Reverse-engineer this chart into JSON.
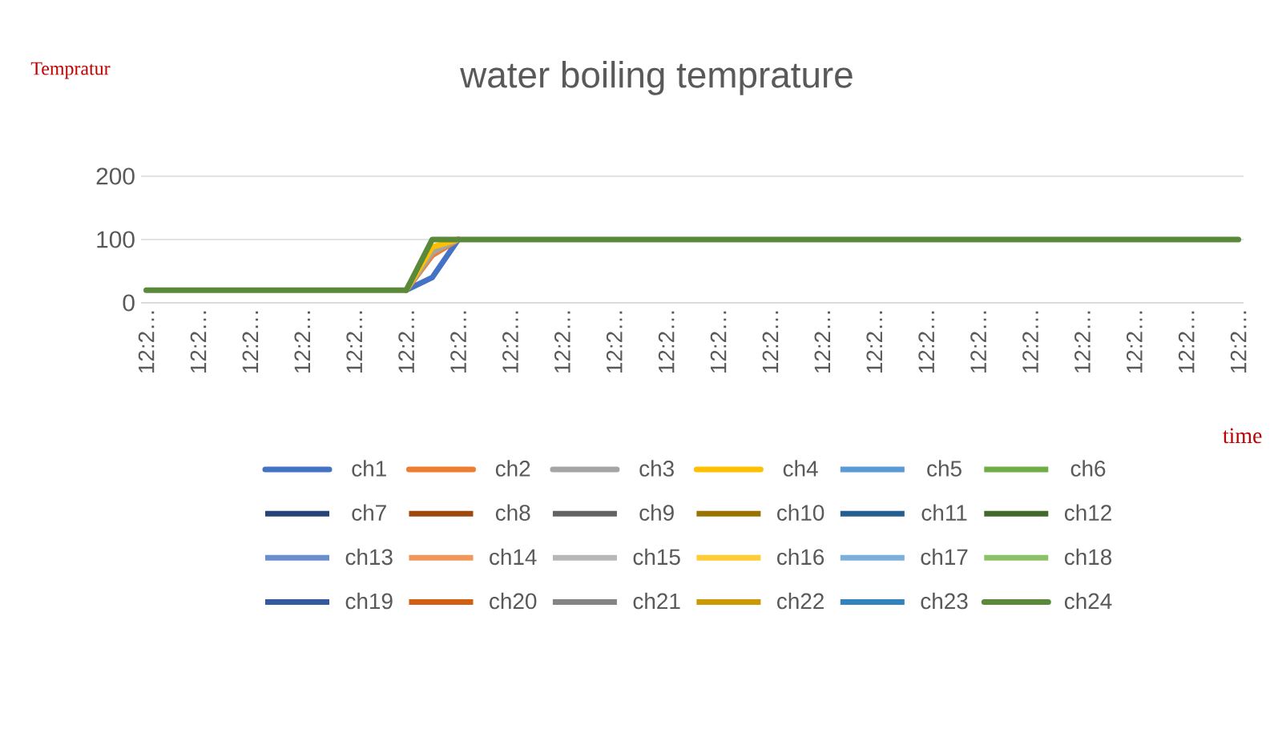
{
  "chart_data": {
    "type": "line",
    "title": "water boiling temprature",
    "xlabel": "time",
    "ylabel": "Tempratur",
    "categories": [
      "12:2…",
      null,
      "12:2…",
      null,
      "12:2…",
      null,
      "12:2…",
      null,
      "12:2…",
      null,
      "12:2…",
      null,
      "12:2…",
      null,
      "12:2…",
      null,
      "12:2…",
      null,
      "12:2…",
      null,
      "12:2…",
      null,
      "12:2…",
      null,
      "12:2…",
      null,
      "12:2…",
      null,
      "12:2…",
      null,
      "12:2…",
      null,
      "12:2…",
      null,
      "12:2…",
      null,
      "12:2…",
      null,
      "12:2…",
      null,
      "12:2…",
      null,
      "12:2…"
    ],
    "ylim": [
      0,
      200
    ],
    "yticks": [
      0,
      100,
      200
    ],
    "grid": "y",
    "legend": "bottom",
    "marker": "none",
    "series": [
      {
        "name": "ch1",
        "color": "#4472c4",
        "values": [
          null,
          null,
          null,
          null,
          null,
          null,
          null,
          null,
          null,
          null,
          20,
          40,
          100,
          null,
          null,
          null,
          null,
          null,
          null,
          null,
          null,
          null,
          null,
          null,
          null,
          null,
          null,
          null,
          null,
          null,
          null,
          null,
          null,
          null,
          null,
          null,
          null,
          null,
          null,
          null,
          null,
          null,
          null
        ]
      },
      {
        "name": "ch2",
        "color": "#ed7d31",
        "values": [
          null,
          null,
          null,
          null,
          null,
          null,
          null,
          null,
          null,
          null,
          20,
          75,
          100,
          null,
          null,
          null,
          null,
          null,
          null,
          null,
          null,
          null,
          null,
          null,
          null,
          null,
          null,
          null,
          null,
          null,
          null,
          null,
          null,
          null,
          null,
          null,
          null,
          null,
          null,
          null,
          null,
          null,
          null
        ]
      },
      {
        "name": "ch3",
        "color": "#a5a5a5",
        "values": [
          null,
          null,
          null,
          null,
          null,
          null,
          null,
          null,
          null,
          null,
          20,
          80,
          100,
          null,
          null,
          null,
          null,
          null,
          null,
          null,
          null,
          null,
          null,
          null,
          null,
          null,
          null,
          null,
          null,
          null,
          null,
          null,
          null,
          null,
          null,
          null,
          null,
          null,
          null,
          null,
          null,
          null,
          null
        ]
      },
      {
        "name": "ch4",
        "color": "#ffc000",
        "values": [
          null,
          null,
          null,
          null,
          null,
          null,
          null,
          null,
          null,
          null,
          20,
          88,
          100,
          null,
          null,
          null,
          null,
          null,
          null,
          null,
          null,
          null,
          null,
          null,
          null,
          null,
          null,
          null,
          null,
          null,
          null,
          null,
          null,
          null,
          null,
          null,
          null,
          null,
          null,
          null,
          null,
          null,
          null
        ]
      },
      {
        "name": "ch5",
        "color": "#5b9bd5",
        "values": [
          null,
          null,
          null,
          null,
          null,
          null,
          null,
          null,
          null,
          null,
          null,
          null,
          null,
          null,
          null,
          null,
          null,
          null,
          null,
          null,
          null,
          null,
          null,
          null,
          null,
          null,
          null,
          null,
          null,
          null,
          null,
          null,
          null,
          null,
          null,
          null,
          null,
          null,
          null,
          null,
          null,
          null,
          null
        ]
      },
      {
        "name": "ch6",
        "color": "#70ad47",
        "values": [
          null,
          null,
          null,
          null,
          null,
          null,
          null,
          null,
          null,
          null,
          null,
          null,
          null,
          null,
          null,
          null,
          null,
          null,
          null,
          null,
          null,
          null,
          null,
          null,
          null,
          null,
          null,
          null,
          null,
          null,
          null,
          null,
          null,
          null,
          null,
          null,
          null,
          null,
          null,
          null,
          null,
          null,
          null
        ]
      },
      {
        "name": "ch7",
        "color": "#264478",
        "values": [
          null,
          null,
          null,
          null,
          null,
          null,
          null,
          null,
          null,
          null,
          null,
          null,
          null,
          null,
          null,
          null,
          null,
          null,
          null,
          null,
          null,
          null,
          null,
          null,
          null,
          null,
          null,
          null,
          null,
          null,
          null,
          null,
          null,
          null,
          null,
          null,
          null,
          null,
          null,
          null,
          null,
          null,
          null
        ]
      },
      {
        "name": "ch8",
        "color": "#9e480e",
        "values": [
          null,
          null,
          null,
          null,
          null,
          null,
          null,
          null,
          null,
          null,
          null,
          null,
          null,
          null,
          null,
          null,
          null,
          null,
          null,
          null,
          null,
          null,
          null,
          null,
          null,
          null,
          null,
          null,
          null,
          null,
          null,
          null,
          null,
          null,
          null,
          null,
          null,
          null,
          null,
          null,
          null,
          null,
          null
        ]
      },
      {
        "name": "ch9",
        "color": "#636363",
        "values": [
          null,
          null,
          null,
          null,
          null,
          null,
          null,
          null,
          null,
          null,
          null,
          null,
          null,
          null,
          null,
          null,
          null,
          null,
          null,
          null,
          null,
          null,
          null,
          null,
          null,
          null,
          null,
          null,
          null,
          null,
          null,
          null,
          null,
          null,
          null,
          null,
          null,
          null,
          null,
          null,
          null,
          null,
          null
        ]
      },
      {
        "name": "ch10",
        "color": "#997300",
        "values": [
          null,
          null,
          null,
          null,
          null,
          null,
          null,
          null,
          null,
          null,
          null,
          null,
          null,
          null,
          null,
          null,
          null,
          null,
          null,
          null,
          null,
          null,
          null,
          null,
          null,
          null,
          null,
          null,
          null,
          null,
          null,
          null,
          null,
          null,
          null,
          null,
          null,
          null,
          null,
          null,
          null,
          null,
          null
        ]
      },
      {
        "name": "ch11",
        "color": "#255e91",
        "values": [
          null,
          null,
          null,
          null,
          null,
          null,
          null,
          null,
          null,
          null,
          null,
          null,
          null,
          null,
          null,
          null,
          null,
          null,
          null,
          null,
          null,
          null,
          null,
          null,
          null,
          null,
          null,
          null,
          null,
          null,
          null,
          null,
          null,
          null,
          null,
          null,
          null,
          null,
          null,
          null,
          null,
          null,
          null
        ]
      },
      {
        "name": "ch12",
        "color": "#43682b",
        "values": [
          null,
          null,
          null,
          null,
          null,
          null,
          null,
          null,
          null,
          null,
          null,
          null,
          null,
          null,
          null,
          null,
          null,
          null,
          null,
          null,
          null,
          null,
          null,
          null,
          null,
          null,
          null,
          null,
          null,
          null,
          null,
          null,
          null,
          null,
          null,
          null,
          null,
          null,
          null,
          null,
          null,
          null,
          null
        ]
      },
      {
        "name": "ch13",
        "color": "#698ed0",
        "values": [
          null,
          null,
          null,
          null,
          null,
          null,
          null,
          null,
          null,
          null,
          null,
          null,
          null,
          null,
          null,
          null,
          null,
          null,
          null,
          null,
          null,
          null,
          null,
          null,
          null,
          null,
          null,
          null,
          null,
          null,
          null,
          null,
          null,
          null,
          null,
          null,
          null,
          null,
          null,
          null,
          null,
          null,
          null
        ]
      },
      {
        "name": "ch14",
        "color": "#f1975a",
        "values": [
          null,
          null,
          null,
          null,
          null,
          null,
          null,
          null,
          null,
          null,
          null,
          null,
          null,
          null,
          null,
          null,
          null,
          null,
          null,
          null,
          null,
          null,
          null,
          null,
          null,
          null,
          null,
          null,
          null,
          null,
          null,
          null,
          null,
          null,
          null,
          null,
          null,
          null,
          null,
          null,
          null,
          null,
          null
        ]
      },
      {
        "name": "ch15",
        "color": "#b7b7b7",
        "values": [
          null,
          null,
          null,
          null,
          null,
          null,
          null,
          null,
          null,
          null,
          null,
          null,
          null,
          null,
          null,
          null,
          null,
          null,
          null,
          null,
          null,
          null,
          null,
          null,
          null,
          null,
          null,
          null,
          null,
          null,
          null,
          null,
          null,
          null,
          null,
          null,
          null,
          null,
          null,
          null,
          null,
          null,
          null
        ]
      },
      {
        "name": "ch16",
        "color": "#ffcd33",
        "values": [
          null,
          null,
          null,
          null,
          null,
          null,
          null,
          null,
          null,
          null,
          null,
          null,
          null,
          null,
          null,
          null,
          null,
          null,
          null,
          null,
          null,
          null,
          null,
          null,
          null,
          null,
          null,
          null,
          null,
          null,
          null,
          null,
          null,
          null,
          null,
          null,
          null,
          null,
          null,
          null,
          null,
          null,
          null
        ]
      },
      {
        "name": "ch17",
        "color": "#7cafdd",
        "values": [
          null,
          null,
          null,
          null,
          null,
          null,
          null,
          null,
          null,
          null,
          null,
          null,
          null,
          null,
          null,
          null,
          null,
          null,
          null,
          null,
          null,
          null,
          null,
          null,
          null,
          null,
          null,
          null,
          null,
          null,
          null,
          null,
          null,
          null,
          null,
          null,
          null,
          null,
          null,
          null,
          null,
          null,
          null
        ]
      },
      {
        "name": "ch18",
        "color": "#8cc168",
        "values": [
          null,
          null,
          null,
          null,
          null,
          null,
          null,
          null,
          null,
          null,
          null,
          null,
          null,
          null,
          null,
          null,
          null,
          null,
          null,
          null,
          null,
          null,
          null,
          null,
          null,
          null,
          null,
          null,
          null,
          null,
          null,
          null,
          null,
          null,
          null,
          null,
          null,
          null,
          null,
          null,
          null,
          null,
          null
        ]
      },
      {
        "name": "ch19",
        "color": "#335aa1",
        "values": [
          null,
          null,
          null,
          null,
          null,
          null,
          null,
          null,
          null,
          null,
          null,
          null,
          null,
          null,
          null,
          null,
          null,
          null,
          null,
          null,
          null,
          null,
          null,
          null,
          null,
          null,
          null,
          null,
          null,
          null,
          null,
          null,
          null,
          null,
          null,
          null,
          null,
          null,
          null,
          null,
          null,
          null,
          null
        ]
      },
      {
        "name": "ch20",
        "color": "#d26012",
        "values": [
          null,
          null,
          null,
          null,
          null,
          null,
          null,
          null,
          null,
          null,
          null,
          null,
          null,
          null,
          null,
          null,
          null,
          null,
          null,
          null,
          null,
          null,
          null,
          null,
          null,
          null,
          null,
          null,
          null,
          null,
          null,
          null,
          null,
          null,
          null,
          null,
          null,
          null,
          null,
          null,
          null,
          null,
          null
        ]
      },
      {
        "name": "ch21",
        "color": "#848484",
        "values": [
          null,
          null,
          null,
          null,
          null,
          null,
          null,
          null,
          null,
          null,
          null,
          null,
          null,
          null,
          null,
          null,
          null,
          null,
          null,
          null,
          null,
          null,
          null,
          null,
          null,
          null,
          null,
          null,
          null,
          null,
          null,
          null,
          null,
          null,
          null,
          null,
          null,
          null,
          null,
          null,
          null,
          null,
          null
        ]
      },
      {
        "name": "ch22",
        "color": "#cc9a00",
        "values": [
          null,
          null,
          null,
          null,
          null,
          null,
          null,
          null,
          null,
          null,
          null,
          null,
          null,
          null,
          null,
          null,
          null,
          null,
          null,
          null,
          null,
          null,
          null,
          null,
          null,
          null,
          null,
          null,
          null,
          null,
          null,
          null,
          null,
          null,
          null,
          null,
          null,
          null,
          null,
          null,
          null,
          null,
          null
        ]
      },
      {
        "name": "ch23",
        "color": "#3282bd",
        "values": [
          null,
          null,
          null,
          null,
          null,
          null,
          null,
          null,
          null,
          null,
          null,
          null,
          null,
          null,
          null,
          null,
          null,
          null,
          null,
          null,
          null,
          null,
          null,
          null,
          null,
          null,
          null,
          null,
          null,
          null,
          null,
          null,
          null,
          null,
          null,
          null,
          null,
          null,
          null,
          null,
          null,
          null,
          null
        ]
      },
      {
        "name": "ch24",
        "color": "#5a8a39",
        "values": [
          20,
          20,
          20,
          20,
          20,
          20,
          20,
          20,
          20,
          20,
          20,
          100,
          100,
          100,
          100,
          100,
          100,
          100,
          100,
          100,
          100,
          100,
          100,
          100,
          100,
          100,
          100,
          100,
          100,
          100,
          100,
          100,
          100,
          100,
          100,
          100,
          100,
          100,
          100,
          100,
          100,
          100,
          100
        ]
      }
    ]
  }
}
